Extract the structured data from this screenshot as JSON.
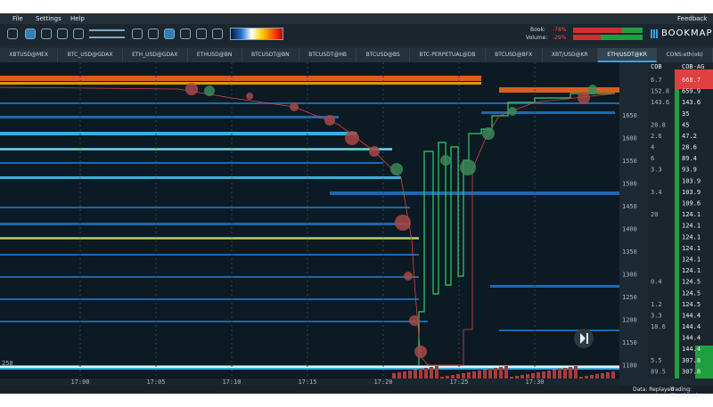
{
  "menu": [
    "File",
    "Settings",
    "Help"
  ],
  "feedback": "Feedback",
  "indicators": {
    "book_label": "Book:",
    "book_value": "-78%",
    "volume_label": "Volume:",
    "volume_value": "-29%"
  },
  "brand": "BOOKMAP",
  "tabs": [
    "XBTUSD@MEX",
    "BTC_USD@GDAX",
    "ETH_USD@GDAX",
    "ETHUSD@BN",
    "BTCUSDT@BN",
    "BTCUSDT@HB",
    "BTCUSD@BS",
    "BTC-PERPETUAL@DB",
    "BTCUSD@BFX",
    "XBT/USD@KR",
    "ETH/USDT@KR",
    "CONS:eth(ob)"
  ],
  "active_tab": 10,
  "columns": [
    "COB",
    "COB-AG"
  ],
  "price_labels": [
    1650,
    1600,
    1550,
    1500,
    1450,
    1400,
    1350,
    1300,
    1250,
    1200,
    1150,
    1100
  ],
  "cob": [
    6.7,
    152.8,
    143.6,
    null,
    20.8,
    2.6,
    4,
    6,
    3.3,
    null,
    3.4,
    null,
    20,
    null,
    null,
    null,
    null,
    null,
    0.4,
    null,
    1.2,
    3.3,
    18.6,
    null,
    null,
    5.5,
    89.5
  ],
  "cob_ag": [
    668.7,
    659.9,
    143.6,
    35,
    45,
    47.2,
    28.6,
    89.4,
    93.9,
    103.9,
    103.9,
    109.6,
    124.1,
    124.1,
    124.1,
    124.1,
    124.1,
    124.1,
    124.5,
    124.5,
    124.5,
    144.4,
    144.4,
    144.4,
    144.4,
    307.8,
    307.8
  ],
  "time_labels": [
    "17:00",
    "17:05",
    "17:10",
    "17:15",
    "17:20",
    "17:25",
    "17:30"
  ],
  "volume_scale": "250",
  "status": {
    "data": "Data: Replayed",
    "trading": "Trading: Simulated"
  }
}
